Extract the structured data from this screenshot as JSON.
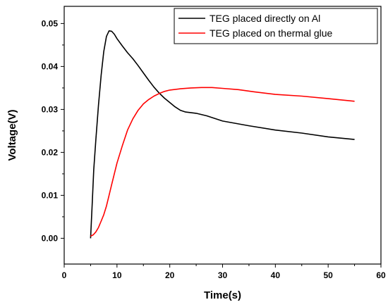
{
  "chart_data": {
    "type": "line",
    "title": "",
    "xlabel": "Time(s)",
    "ylabel": "Voltage(V)",
    "xlim": [
      0,
      60
    ],
    "ylim": [
      -0.006,
      0.054
    ],
    "x_ticks": [
      0,
      10,
      20,
      30,
      40,
      50,
      60
    ],
    "x_tick_labels": [
      "0",
      "10",
      "20",
      "30",
      "40",
      "50",
      "60"
    ],
    "y_ticks": [
      0.0,
      0.01,
      0.02,
      0.03,
      0.04,
      0.05
    ],
    "y_tick_labels": [
      "0.00",
      "0.01",
      "0.02",
      "0.03",
      "0.04",
      "0.05"
    ],
    "grid": false,
    "legend_position": "top-right",
    "series": [
      {
        "name": "TEG placed directly on Al",
        "color": "#000000",
        "x": [
          5,
          5.3,
          5.6,
          6,
          6.5,
          7,
          7.5,
          8,
          8.5,
          9,
          9.5,
          10,
          11,
          12,
          13,
          14,
          15,
          16,
          17,
          18,
          19,
          20,
          21,
          22,
          23,
          25,
          27,
          30,
          35,
          40,
          45,
          50,
          55
        ],
        "y": [
          0.0,
          0.008,
          0.016,
          0.023,
          0.031,
          0.038,
          0.0435,
          0.047,
          0.0483,
          0.0482,
          0.0475,
          0.0465,
          0.0448,
          0.0432,
          0.0418,
          0.0402,
          0.0385,
          0.0368,
          0.0352,
          0.0338,
          0.0326,
          0.0316,
          0.0306,
          0.0298,
          0.0294,
          0.0291,
          0.0285,
          0.0273,
          0.0262,
          0.0252,
          0.0245,
          0.0236,
          0.023
        ]
      },
      {
        "name": "TEG placed on thermal glue",
        "color": "#ff0000",
        "x": [
          5,
          5.5,
          6,
          6.5,
          7,
          7.5,
          8,
          8.5,
          9,
          10,
          11,
          12,
          13,
          14,
          15,
          16,
          17,
          18,
          19,
          20,
          22,
          24,
          26,
          28,
          30,
          33,
          36,
          40,
          45,
          50,
          55
        ],
        "y": [
          0.0005,
          0.0008,
          0.0015,
          0.0025,
          0.004,
          0.0055,
          0.0075,
          0.01,
          0.0125,
          0.0175,
          0.0215,
          0.0252,
          0.0278,
          0.0298,
          0.0313,
          0.0323,
          0.0331,
          0.0337,
          0.0342,
          0.0345,
          0.0348,
          0.035,
          0.0351,
          0.0351,
          0.0349,
          0.0346,
          0.0341,
          0.0335,
          0.0331,
          0.0325,
          0.0319
        ]
      }
    ]
  }
}
